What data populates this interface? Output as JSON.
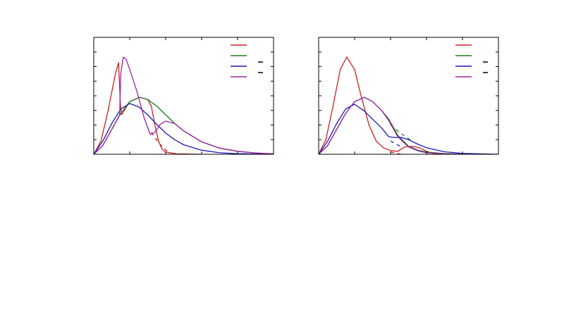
{
  "chart_data": [
    {
      "type": "line",
      "xlim": [
        0,
        5
      ],
      "ylim": [
        0,
        8
      ],
      "xticks": [
        1,
        2,
        3,
        4
      ],
      "yticks": [
        1,
        2,
        3,
        4,
        5,
        6,
        7
      ],
      "grid": false,
      "legend": "top-right",
      "series": [
        {
          "color": "#cc2020",
          "style": "solid",
          "points": [
            [
              0,
              0
            ],
            [
              0.2,
              0.9
            ],
            [
              0.4,
              3.0
            ],
            [
              0.6,
              5.5
            ],
            [
              0.69,
              6.27
            ],
            [
              0.74,
              3.5
            ],
            [
              0.77,
              2.7
            ],
            [
              1,
              3.6
            ],
            [
              1.27,
              3.9
            ],
            [
              1.5,
              3.75
            ],
            [
              1.6,
              3.3
            ],
            [
              1.7,
              2.0
            ],
            [
              1.8,
              0.9
            ],
            [
              1.9,
              0.35
            ],
            [
              2,
              0.15
            ],
            [
              2.3,
              0.03
            ],
            [
              3,
              0
            ]
          ]
        },
        {
          "color": "#cc2020",
          "style": "dashed",
          "points": [
            [
              1.6,
              1.5
            ],
            [
              1.8,
              0.8
            ],
            [
              2.0,
              0.3
            ],
            [
              2.15,
              0.05
            ]
          ]
        },
        {
          "color": "#1e7b1e",
          "style": "solid",
          "points": [
            [
              0,
              0
            ],
            [
              0.25,
              0.6
            ],
            [
              0.5,
              1.7
            ],
            [
              0.75,
              2.8
            ],
            [
              1,
              3.6
            ],
            [
              1.27,
              3.9
            ],
            [
              1.5,
              3.75
            ],
            [
              1.75,
              3.3
            ],
            [
              2,
              2.7
            ],
            [
              2.25,
              2.1
            ],
            [
              2.5,
              1.6
            ],
            [
              3,
              0.85
            ],
            [
              3.5,
              0.42
            ],
            [
              4,
              0.2
            ],
            [
              4.5,
              0.09
            ],
            [
              5,
              0.03
            ]
          ]
        },
        {
          "color": "#1a1ab8",
          "style": "solid",
          "points": [
            [
              0,
              0
            ],
            [
              0.25,
              0.9
            ],
            [
              0.5,
              2.1
            ],
            [
              0.75,
              3.1
            ],
            [
              1,
              3.47
            ],
            [
              1.25,
              3.25
            ],
            [
              1.5,
              2.7
            ],
            [
              1.75,
              2.05
            ],
            [
              2,
              1.45
            ],
            [
              2.25,
              1.0
            ],
            [
              2.5,
              0.65
            ],
            [
              3,
              0.28
            ],
            [
              3.5,
              0.1
            ],
            [
              4,
              0.04
            ],
            [
              5,
              0
            ]
          ]
        },
        {
          "color": "#a020a8",
          "style": "solid",
          "points": [
            [
              0,
              0
            ],
            [
              0.25,
              0.6
            ],
            [
              0.5,
              1.7
            ],
            [
              0.72,
              2.7
            ],
            [
              0.75,
              5.5
            ],
            [
              0.82,
              6.65
            ],
            [
              0.9,
              6.5
            ],
            [
              1,
              5.8
            ],
            [
              1.2,
              4.3
            ],
            [
              1.4,
              2.5
            ],
            [
              1.57,
              1.35
            ],
            [
              1.7,
              1.5
            ],
            [
              1.85,
              2.05
            ],
            [
              2,
              2.27
            ],
            [
              2.25,
              2.1
            ],
            [
              2.5,
              1.6
            ],
            [
              3,
              0.85
            ],
            [
              3.5,
              0.42
            ],
            [
              4,
              0.2
            ],
            [
              4.5,
              0.09
            ],
            [
              5,
              0.03
            ]
          ]
        }
      ]
    },
    {
      "type": "line",
      "xlim": [
        0,
        5
      ],
      "ylim": [
        0,
        8
      ],
      "xticks": [
        1,
        2,
        3,
        4
      ],
      "yticks": [
        1,
        2,
        3,
        4,
        5,
        6,
        7
      ],
      "grid": false,
      "legend": "top-right",
      "series": [
        {
          "color": "#cc2020",
          "style": "solid",
          "points": [
            [
              0,
              0
            ],
            [
              0.2,
              1.0
            ],
            [
              0.4,
              3.3
            ],
            [
              0.6,
              5.8
            ],
            [
              0.78,
              6.65
            ],
            [
              1,
              5.8
            ],
            [
              1.2,
              3.8
            ],
            [
              1.4,
              2.0
            ],
            [
              1.6,
              0.9
            ],
            [
              1.8,
              0.45
            ],
            [
              2,
              0.25
            ],
            [
              2.2,
              0.2
            ],
            [
              2.4,
              0.5
            ],
            [
              2.6,
              0.55
            ],
            [
              2.8,
              0.45
            ],
            [
              3,
              0.2
            ],
            [
              3.2,
              0.05
            ],
            [
              3.5,
              0
            ]
          ]
        },
        {
          "color": "#cc2020",
          "style": "dashed",
          "points": [
            [
              2.0,
              0.15
            ],
            [
              2.3,
              0.0
            ]
          ]
        },
        {
          "color": "#1e7b1e",
          "style": "solid",
          "points": [
            [
              0,
              0
            ],
            [
              0.25,
              0.6
            ],
            [
              0.5,
              1.7
            ],
            [
              0.75,
              2.8
            ],
            [
              1,
              3.6
            ],
            [
              1.27,
              3.9
            ],
            [
              1.5,
              3.6
            ],
            [
              1.75,
              3.0
            ],
            [
              1.95,
              2.4
            ],
            [
              2.2,
              1.3
            ],
            [
              2.5,
              0.55
            ],
            [
              2.8,
              0.25
            ],
            [
              3,
              0.15
            ],
            [
              3.5,
              0.05
            ],
            [
              4,
              0.01
            ]
          ]
        },
        {
          "color": "#1e7b1e",
          "style": "dashed",
          "points": [
            [
              2.0,
              2.0
            ],
            [
              2.3,
              1.4
            ],
            [
              2.6,
              0.9
            ]
          ]
        },
        {
          "color": "#1a1ab8",
          "style": "solid",
          "points": [
            [
              0,
              0
            ],
            [
              0.25,
              0.9
            ],
            [
              0.5,
              2.1
            ],
            [
              0.75,
              3.1
            ],
            [
              1,
              3.42
            ],
            [
              1.25,
              3.0
            ],
            [
              1.5,
              2.4
            ],
            [
              1.75,
              1.8
            ],
            [
              1.95,
              1.2
            ],
            [
              2.1,
              1.15
            ],
            [
              2.3,
              1.15
            ],
            [
              2.5,
              1.0
            ],
            [
              2.75,
              0.7
            ],
            [
              3,
              0.45
            ],
            [
              3.5,
              0.17
            ],
            [
              4,
              0.06
            ],
            [
              5,
              0
            ]
          ]
        },
        {
          "color": "#1a1ab8",
          "style": "dashed",
          "points": [
            [
              2.0,
              0.9
            ],
            [
              2.3,
              0.5
            ]
          ]
        },
        {
          "color": "#a020a8",
          "style": "solid",
          "points": [
            [
              0,
              0
            ],
            [
              0.25,
              0.6
            ],
            [
              0.5,
              1.7
            ],
            [
              0.75,
              2.8
            ],
            [
              1,
              3.6
            ],
            [
              1.27,
              3.9
            ],
            [
              1.5,
              3.6
            ],
            [
              1.75,
              3.0
            ],
            [
              1.95,
              2.3
            ],
            [
              2.2,
              1.2
            ],
            [
              2.5,
              0.5
            ],
            [
              2.8,
              0.2
            ],
            [
              3,
              0.1
            ],
            [
              3.5,
              0.03
            ],
            [
              4,
              0
            ]
          ]
        }
      ],
      "legend_colors": [
        "#cc2020",
        "#1e7b1e",
        "#1a1ab8",
        "#a020a8"
      ]
    }
  ]
}
